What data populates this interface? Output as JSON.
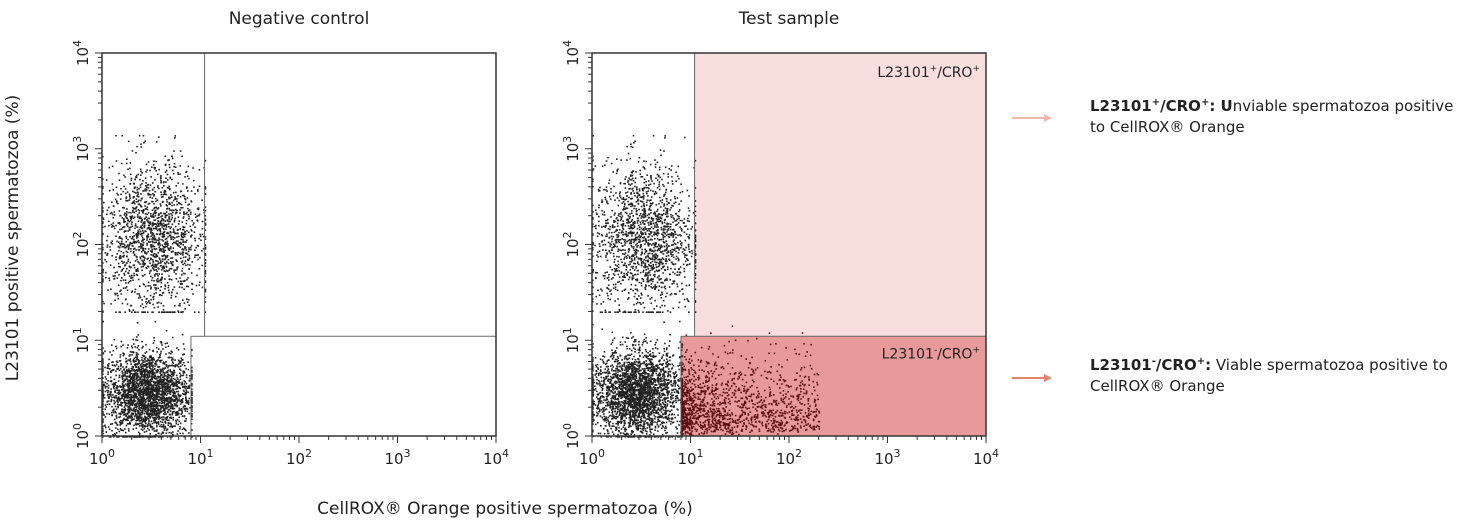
{
  "chart_data": {
    "type": "scatter",
    "xlabel": "CellROX® Orange positive spermatozoa (%)",
    "ylabel": "L23101 positive spermatozoa (%)",
    "xscale": "log",
    "yscale": "log",
    "xlim": [
      1,
      10000
    ],
    "ylim": [
      1,
      10000
    ],
    "xticks": [
      1,
      10,
      100,
      1000,
      10000
    ],
    "yticks": [
      1,
      10,
      100,
      1000,
      10000
    ],
    "panels": [
      {
        "title": "Negative control",
        "gates": {
          "vertical_x": 11,
          "vertical_x_lower": 8,
          "horizontal_y": 11
        },
        "series": [
          {
            "x_range": [
              1,
              8
            ],
            "y_range": [
              1,
              8
            ],
            "density": "high"
          },
          {
            "x_range": [
              1,
              11
            ],
            "y_range": [
              20,
              700
            ],
            "density": "medium"
          }
        ],
        "quadrant_labels": []
      },
      {
        "title": "Test sample",
        "gates": {
          "vertical_x": 11,
          "vertical_x_lower": 8,
          "horizontal_y": 11
        },
        "series": [
          {
            "x_range": [
              1,
              8
            ],
            "y_range": [
              1,
              8
            ],
            "density": "high"
          },
          {
            "x_range": [
              1,
              11
            ],
            "y_range": [
              20,
              700
            ],
            "density": "medium"
          },
          {
            "x_range": [
              8,
              200
            ],
            "y_range": [
              1,
              10
            ],
            "density": "medium",
            "highlight": "dark-red"
          }
        ],
        "quadrant_labels": [
          {
            "quadrant": "upper-right",
            "base": "L23101",
            "sup1": "+",
            "sep": "/CRO",
            "sup2": "+",
            "color": "#f9dede"
          },
          {
            "quadrant": "lower-right",
            "base": "L23101",
            "sup1": "-",
            "sep": "/CRO",
            "sup2": "+",
            "color": "#e89a9a"
          }
        ]
      }
    ]
  },
  "legend": [
    {
      "arrow_color": "#f4b7ad",
      "bold_parts": [
        "L23101",
        "+",
        "/CRO",
        "+",
        ": U"
      ],
      "text": "nviable spermatozoa positive",
      "text2": "to CellROX® Orange"
    },
    {
      "arrow_color": "#e8826f",
      "bold_parts": [
        "L23101",
        "-",
        "/CRO",
        "+",
        ":"
      ],
      "text": " Viable spermatozoa positive to",
      "text2": "CellROX® Orange"
    }
  ],
  "colors": {
    "dots": "#222222",
    "highlight_dots": "#5a0f12",
    "axis": "#333333",
    "gate": "#666666"
  }
}
